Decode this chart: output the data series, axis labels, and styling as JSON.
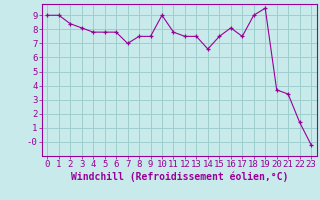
{
  "x": [
    0,
    1,
    2,
    3,
    4,
    5,
    6,
    7,
    8,
    9,
    10,
    11,
    12,
    13,
    14,
    15,
    16,
    17,
    18,
    19,
    20,
    21,
    22,
    23
  ],
  "y": [
    9.0,
    9.0,
    8.4,
    8.1,
    7.8,
    7.8,
    7.8,
    7.0,
    7.5,
    7.5,
    9.0,
    7.8,
    7.5,
    7.5,
    6.6,
    7.5,
    8.1,
    7.5,
    9.0,
    9.5,
    3.7,
    3.4,
    1.4,
    -0.2
  ],
  "line_color": "#990099",
  "marker": "+",
  "bg_color": "#c8eaea",
  "grid_color": "#9ecece",
  "xlabel": "Windchill (Refroidissement éolien,°C)",
  "xlabel_color": "#990099",
  "tick_color": "#990099",
  "ylim": [
    -1.0,
    9.8
  ],
  "xlim": [
    -0.5,
    23.5
  ],
  "yticks": [
    0,
    1,
    2,
    3,
    4,
    5,
    6,
    7,
    8,
    9
  ],
  "ytick_labels": [
    "-0",
    "1",
    "2",
    "3",
    "4",
    "5",
    "6",
    "7",
    "8",
    "9"
  ],
  "xticks": [
    0,
    1,
    2,
    3,
    4,
    5,
    6,
    7,
    8,
    9,
    10,
    11,
    12,
    13,
    14,
    15,
    16,
    17,
    18,
    19,
    20,
    21,
    22,
    23
  ],
  "font_size": 6.5,
  "xlabel_fontsize": 7.0,
  "line_width": 0.8,
  "marker_size": 3
}
